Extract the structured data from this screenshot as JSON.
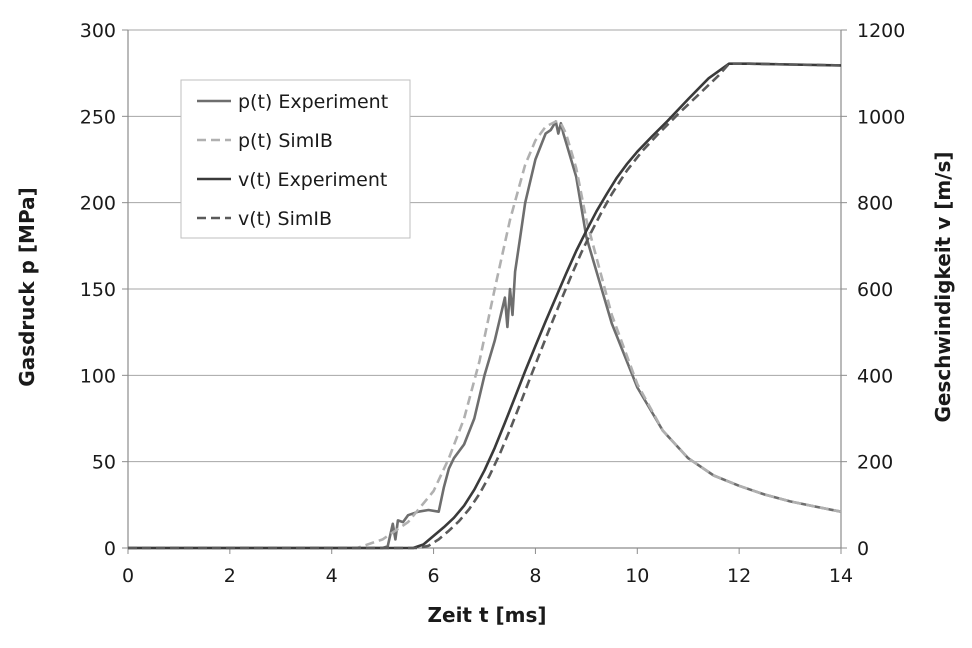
{
  "chart_data": {
    "type": "line",
    "title": "",
    "xlabel": "Zeit t [ms]",
    "ylabel_left": "Gasdruck p [MPa]",
    "ylabel_right": "Geschwindigkeit v [m/s]",
    "xlim": [
      0,
      14
    ],
    "ylim_left": [
      0,
      300
    ],
    "ylim_right": [
      0,
      1200
    ],
    "xticks": [
      "0",
      "2",
      "4",
      "6",
      "8",
      "10",
      "12",
      "14"
    ],
    "yticks_left": [
      "0",
      "50",
      "100",
      "150",
      "200",
      "250",
      "300"
    ],
    "yticks_right": [
      "0",
      "200",
      "400",
      "600",
      "800",
      "1000",
      "1200"
    ],
    "grid": "horizontal",
    "legend_position": "top-left",
    "series": [
      {
        "name": "p(t) Experiment",
        "axis": "left",
        "style": "solid",
        "color": "#6e6e6e",
        "x": [
          0,
          5.0,
          5.1,
          5.2,
          5.25,
          5.3,
          5.4,
          5.5,
          5.7,
          5.9,
          6.1,
          6.2,
          6.3,
          6.4,
          6.6,
          6.8,
          7.0,
          7.2,
          7.4,
          7.45,
          7.5,
          7.55,
          7.6,
          7.7,
          7.8,
          8.0,
          8.2,
          8.3,
          8.4,
          8.45,
          8.5,
          8.55,
          8.6,
          8.8,
          9.0,
          9.5,
          10.0,
          10.5,
          11.0,
          11.5,
          12.0,
          12.5,
          13.0,
          13.5,
          14.0
        ],
        "y": [
          0,
          0,
          1,
          14,
          5,
          16,
          15,
          19,
          21,
          22,
          21,
          35,
          46,
          52,
          60,
          75,
          100,
          120,
          145,
          128,
          150,
          135,
          160,
          180,
          200,
          225,
          240,
          242,
          247,
          240,
          246,
          240,
          235,
          215,
          180,
          130,
          93,
          68,
          52,
          42,
          36,
          31,
          27,
          24,
          21
        ]
      },
      {
        "name": "p(t) SimIB",
        "axis": "left",
        "style": "dashed",
        "color": "#b0b0b0",
        "x": [
          0,
          4.5,
          5.0,
          5.5,
          6.0,
          6.3,
          6.6,
          6.9,
          7.2,
          7.5,
          7.8,
          8.0,
          8.2,
          8.4,
          8.5,
          8.6,
          8.8,
          9.0,
          9.5,
          10.0,
          10.5,
          11.0,
          11.5,
          12.0,
          12.5,
          13.0,
          13.5,
          14.0
        ],
        "y": [
          0,
          0,
          5,
          15,
          33,
          52,
          75,
          108,
          150,
          190,
          222,
          236,
          244,
          247,
          246,
          240,
          220,
          190,
          135,
          95,
          68,
          52,
          42,
          36,
          31,
          27,
          24,
          21
        ]
      },
      {
        "name": "v(t) Experiment",
        "axis": "right",
        "style": "solid",
        "color": "#3a3a3a",
        "x": [
          0,
          5.6,
          5.8,
          6.0,
          6.2,
          6.4,
          6.6,
          6.8,
          7.0,
          7.2,
          7.4,
          7.6,
          7.8,
          8.0,
          8.2,
          8.4,
          8.6,
          8.8,
          9.0,
          9.2,
          9.4,
          9.6,
          9.8,
          10.0,
          10.3,
          10.6,
          11.0,
          11.4,
          11.8,
          12.2,
          13.0,
          14.0
        ],
        "y": [
          0,
          0,
          8,
          28,
          48,
          70,
          98,
          135,
          180,
          232,
          290,
          350,
          410,
          468,
          525,
          580,
          635,
          688,
          735,
          780,
          820,
          858,
          890,
          918,
          955,
          990,
          1040,
          1088,
          1122,
          1122,
          1120,
          1118
        ]
      },
      {
        "name": "v(t) SimIB",
        "axis": "right",
        "style": "dashed",
        "color": "#5a5a5a",
        "x": [
          0,
          5.7,
          5.9,
          6.1,
          6.3,
          6.5,
          6.7,
          6.9,
          7.1,
          7.3,
          7.5,
          7.7,
          7.9,
          8.1,
          8.3,
          8.5,
          8.7,
          8.9,
          9.1,
          9.3,
          9.5,
          9.8,
          10.1,
          10.4,
          10.8,
          11.2,
          11.6,
          11.8,
          12.2,
          13.0,
          14.0
        ],
        "y": [
          0,
          0,
          5,
          20,
          40,
          62,
          90,
          125,
          168,
          218,
          274,
          334,
          395,
          455,
          515,
          573,
          630,
          684,
          733,
          778,
          820,
          875,
          920,
          958,
          1005,
          1050,
          1095,
          1122,
          1122,
          1120,
          1118
        ]
      }
    ]
  }
}
